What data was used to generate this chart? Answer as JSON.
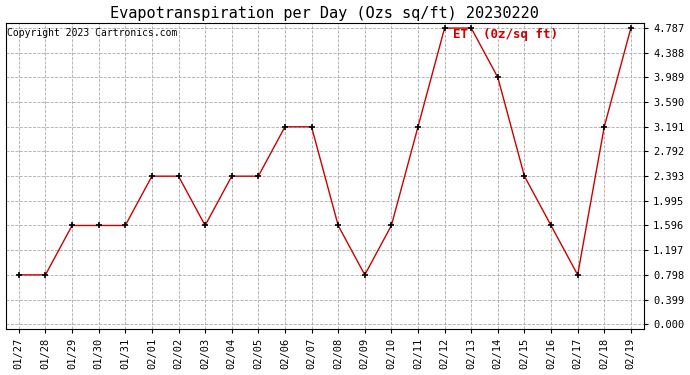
{
  "title": "Evapotranspiration per Day (Ozs sq/ft) 20230220",
  "copyright": "Copyright 2023 Cartronics.com",
  "legend_label": "ET  (0z/sq ft)",
  "x_labels": [
    "01/27",
    "01/28",
    "01/29",
    "01/30",
    "01/31",
    "02/01",
    "02/02",
    "02/03",
    "02/04",
    "02/05",
    "02/06",
    "02/07",
    "02/08",
    "02/09",
    "02/10",
    "02/11",
    "02/12",
    "02/13",
    "02/14",
    "02/15",
    "02/16",
    "02/17",
    "02/18",
    "02/19"
  ],
  "y_values": [
    0.798,
    0.798,
    1.596,
    1.596,
    1.596,
    2.393,
    2.393,
    1.596,
    2.393,
    2.393,
    3.191,
    3.191,
    1.596,
    0.798,
    1.596,
    3.191,
    4.787,
    4.787,
    3.989,
    2.393,
    1.596,
    0.798,
    3.191,
    4.787
  ],
  "y_ticks": [
    0.0,
    0.399,
    0.798,
    1.197,
    1.596,
    1.995,
    2.393,
    2.792,
    3.191,
    3.59,
    3.989,
    4.388,
    4.787
  ],
  "line_color": "#cc0000",
  "marker_color": "#000000",
  "grid_color": "#aaaaaa",
  "background_color": "#ffffff",
  "title_fontsize": 11,
  "tick_fontsize": 7.5,
  "legend_fontsize": 9,
  "copyright_fontsize": 7,
  "ylim_min": 0.0,
  "ylim_max": 4.787,
  "legend_color": "#cc0000"
}
